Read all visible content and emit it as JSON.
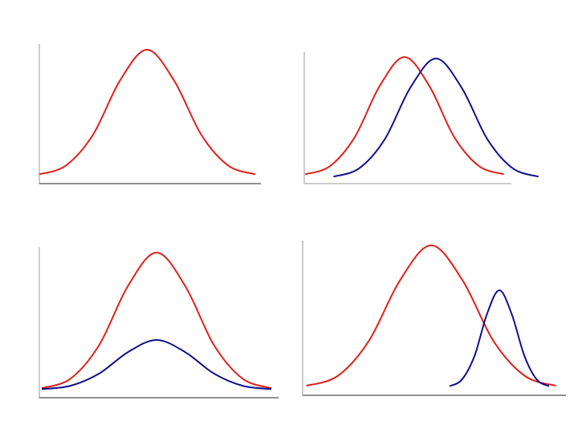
{
  "chart_data": [
    {
      "type": "line",
      "xlim": [
        0,
        10
      ],
      "ylim": [
        0,
        10
      ],
      "series": [
        {
          "color": "#e0201c",
          "x": [
            0.0,
            1.19,
            2.42,
            3.64,
            4.86,
            6.08,
            7.31,
            8.53,
            9.75
          ],
          "values": [
            0.67,
            1.29,
            3.5,
            7.39,
            9.6,
            7.39,
            3.5,
            1.29,
            0.67
          ]
        }
      ]
    },
    {
      "type": "line",
      "xlim": [
        0,
        10
      ],
      "ylim": [
        0,
        10
      ],
      "series": [
        {
          "color": "#e0201c",
          "x": [
            0.04,
            1.24,
            2.44,
            3.64,
            4.84,
            6.04,
            7.24,
            8.44,
            9.64
          ],
          "values": [
            0.71,
            1.33,
            3.54,
            7.42,
            9.63,
            7.42,
            3.54,
            1.33,
            0.71
          ]
        },
        {
          "color": "#10108a",
          "x": [
            1.41,
            2.65,
            3.89,
            5.12,
            6.36,
            7.6,
            8.84,
            10.07,
            11.31
          ],
          "values": [
            0.53,
            1.16,
            3.38,
            7.29,
            9.51,
            7.29,
            3.38,
            1.16,
            0.53
          ]
        }
      ]
    },
    {
      "type": "line",
      "xlim": [
        0,
        10
      ],
      "ylim": [
        0,
        10
      ],
      "series": [
        {
          "color": "#e0201c",
          "x": [
            0.1,
            1.3,
            2.5,
            3.7,
            4.9,
            6.1,
            7.3,
            8.5,
            9.7
          ],
          "values": [
            0.63,
            1.26,
            3.49,
            7.4,
            9.63,
            7.4,
            3.49,
            1.26,
            0.63
          ]
        },
        {
          "color": "#10108a",
          "x": [
            0.1,
            1.3,
            2.5,
            3.7,
            4.9,
            6.1,
            7.3,
            8.5,
            9.7
          ],
          "values": [
            0.57,
            0.79,
            1.6,
            3.02,
            3.83,
            3.02,
            1.6,
            0.79,
            0.57
          ]
        }
      ]
    },
    {
      "type": "line",
      "xlim": [
        0,
        10
      ],
      "ylim": [
        0,
        10
      ],
      "series": [
        {
          "color": "#e0201c",
          "x": [
            0.14,
            1.33,
            2.51,
            3.7,
            4.88,
            6.07,
            7.25,
            8.44,
            9.62
          ],
          "values": [
            0.62,
            1.25,
            3.5,
            7.44,
            9.69,
            7.44,
            3.5,
            1.25,
            0.62
          ]
        },
        {
          "color": "#10108a",
          "x": [
            5.58,
            6.05,
            6.53,
            7.0,
            7.47,
            7.94,
            8.42,
            8.89,
            9.36
          ],
          "values": [
            0.59,
            1.02,
            2.56,
            5.25,
            6.79,
            5.25,
            2.56,
            1.02,
            0.59
          ]
        }
      ]
    }
  ]
}
